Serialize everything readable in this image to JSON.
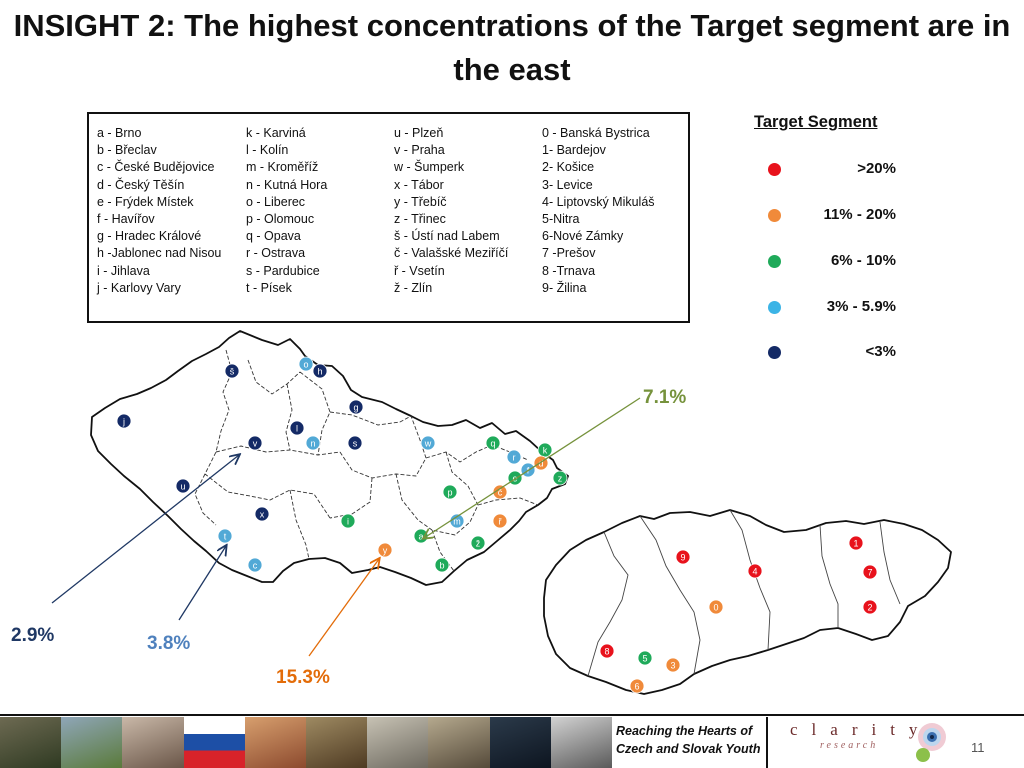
{
  "title": "INSIGHT 2: The highest concentrations of the Target segment are in the east",
  "city_legend": {
    "columns": [
      [
        "a - Brno",
        "b - Břeclav",
        "c - České Budějovice",
        "d - Český Těšín",
        "e - Frýdek Místek",
        "f - Havířov",
        "g - Hradec Králové",
        "h -Jablonec nad Nisou",
        "i - Jihlava",
        "j - Karlovy Vary"
      ],
      [
        "k - Karviná",
        "l - Kolín",
        "m - Kroměříž",
        "n - Kutná Hora",
        "o - Liberec",
        "p - Olomouc",
        "q - Opava",
        "r - Ostrava",
        "s - Pardubice",
        "t - Písek"
      ],
      [
        "u - Plzeň",
        "v - Praha",
        "w - Šumperk",
        "x - Tábor",
        "y - Třebíč",
        "z - Třinec",
        "š - Ústí nad Labem",
        "č - Valašské Meziříčí",
        "ř - Vsetín",
        "ž - Zlín"
      ],
      [
        "0 - Banská Bystrica",
        "1- Bardejov",
        "2- Košice",
        "3- Levice",
        "4- Liptovský Mikuláš",
        "5-Nitra",
        "6-Nové Zámky",
        "7 -Prešov",
        "8 -Trnava",
        "9- Žilina"
      ]
    ]
  },
  "segment_legend": {
    "title": "Target Segment",
    "items": [
      {
        "label": ">20%",
        "color": "#e8121c"
      },
      {
        "label": "11% - 20%",
        "color": "#f08a3a"
      },
      {
        "label": "6% - 10%",
        "color": "#1faa5a"
      },
      {
        "label": "3% - 5.9%",
        "color": "#3cb4e6"
      },
      {
        "label": "<3%",
        "color": "#142a66"
      }
    ]
  },
  "colors": {
    "red": "#e8121c",
    "orange": "#f08a3a",
    "green": "#1faa5a",
    "lightblue": "#52a9d6",
    "navy": "#142a66"
  },
  "map_markers": [
    {
      "id": "š",
      "color": "navy"
    },
    {
      "id": "o",
      "color": "lightblue"
    },
    {
      "id": "h",
      "color": "navy"
    },
    {
      "id": "g",
      "color": "navy"
    },
    {
      "id": "j",
      "color": "navy"
    },
    {
      "id": "l",
      "color": "navy"
    },
    {
      "id": "v",
      "color": "navy"
    },
    {
      "id": "n",
      "color": "lightblue"
    },
    {
      "id": "s",
      "color": "navy"
    },
    {
      "id": "w",
      "color": "lightblue"
    },
    {
      "id": "q",
      "color": "green"
    },
    {
      "id": "k",
      "color": "green"
    },
    {
      "id": "r",
      "color": "lightblue"
    },
    {
      "id": "d",
      "color": "orange"
    },
    {
      "id": "f",
      "color": "lightblue"
    },
    {
      "id": "e",
      "color": "green"
    },
    {
      "id": "z",
      "color": "green"
    },
    {
      "id": "u",
      "color": "navy"
    },
    {
      "id": "p",
      "color": "green"
    },
    {
      "id": "č",
      "color": "orange"
    },
    {
      "id": "x",
      "color": "navy"
    },
    {
      "id": "i",
      "color": "green"
    },
    {
      "id": "m",
      "color": "lightblue"
    },
    {
      "id": "ř",
      "color": "orange"
    },
    {
      "id": "t",
      "color": "lightblue"
    },
    {
      "id": "a",
      "color": "green"
    },
    {
      "id": "ž",
      "color": "green"
    },
    {
      "id": "y",
      "color": "orange"
    },
    {
      "id": "c",
      "color": "lightblue"
    },
    {
      "id": "b",
      "color": "green"
    },
    {
      "id": "9",
      "color": "red"
    },
    {
      "id": "1",
      "color": "red"
    },
    {
      "id": "4",
      "color": "red"
    },
    {
      "id": "7",
      "color": "red"
    },
    {
      "id": "2",
      "color": "red"
    },
    {
      "id": "0",
      "color": "orange"
    },
    {
      "id": "8",
      "color": "red"
    },
    {
      "id": "5",
      "color": "green"
    },
    {
      "id": "3",
      "color": "orange"
    },
    {
      "id": "6",
      "color": "orange"
    }
  ],
  "callouts": [
    {
      "text": "7.1%",
      "color": "#76923c"
    },
    {
      "text": "2.9%",
      "color": "#1f3864"
    },
    {
      "text": "3.8%",
      "color": "#4f81bd"
    },
    {
      "text": "15.3%",
      "color": "#e36c09"
    }
  ],
  "footer": {
    "tagline_line1": "Reaching the Hearts of",
    "tagline_line2": "Czech and Slovak Youth",
    "logo_text": "clarity",
    "logo_subtext": "research",
    "page_number": "11"
  }
}
